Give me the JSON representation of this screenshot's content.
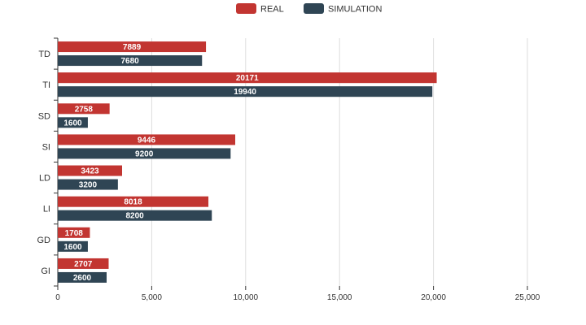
{
  "chart_data": {
    "type": "bar",
    "orientation": "horizontal",
    "categories": [
      "TD",
      "TI",
      "SD",
      "SI",
      "LD",
      "LI",
      "GD",
      "GI"
    ],
    "series": [
      {
        "name": "REAL",
        "color": "#c23531",
        "values": [
          7889,
          20171,
          2758,
          9446,
          3423,
          8018,
          1708,
          2707
        ]
      },
      {
        "name": "SIMULATION",
        "color": "#2f4554",
        "values": [
          7680,
          19940,
          1600,
          9200,
          3200,
          8200,
          1600,
          2600
        ]
      }
    ],
    "xticks": [
      "0",
      "5,000",
      "10,000",
      "15,000",
      "20,000",
      "25,000"
    ],
    "xlim": [
      0,
      25000
    ],
    "grid": true,
    "legend_position": "top-center",
    "data_labels": true
  }
}
